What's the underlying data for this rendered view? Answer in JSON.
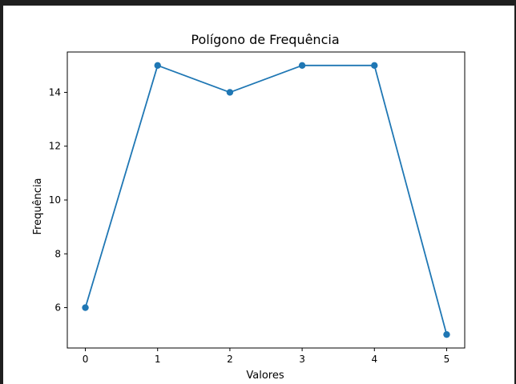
{
  "colors": {
    "line": "#1f77b4",
    "background": "#ffffff",
    "frame": "#1f1f1f"
  },
  "chart_data": {
    "type": "line",
    "title": "Polígono de Frequência",
    "xlabel": "Valores",
    "ylabel": "Frequência",
    "x": [
      0,
      1,
      2,
      3,
      4,
      5
    ],
    "series": [
      {
        "values": [
          6,
          15,
          14,
          15,
          15,
          5
        ]
      }
    ],
    "xlim": [
      -0.25,
      5.25
    ],
    "ylim": [
      4.5,
      15.5
    ],
    "xticks": [
      0,
      1,
      2,
      3,
      4,
      5
    ],
    "yticks": [
      6,
      8,
      10,
      12,
      14
    ],
    "xtick_labels": [
      "0",
      "1",
      "2",
      "3",
      "4",
      "5"
    ],
    "ytick_labels": [
      "6",
      "8",
      "10",
      "12",
      "14"
    ],
    "markers": true,
    "grid": false
  }
}
